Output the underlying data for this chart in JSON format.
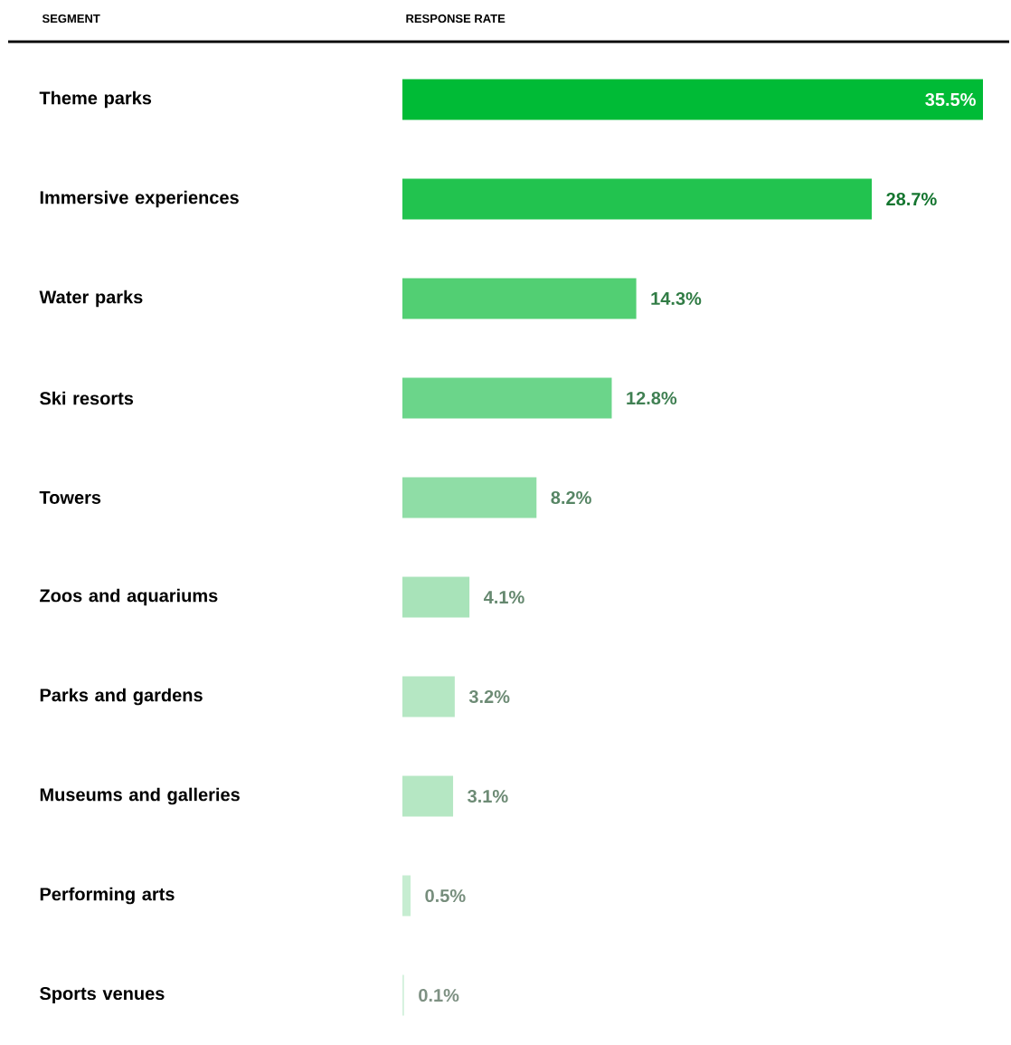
{
  "chart_data": {
    "type": "bar",
    "orientation": "horizontal",
    "xlabel": "RESPONSE RATE",
    "ylabel": "SEGMENT",
    "categories": [
      "Theme parks",
      "Immersive experiences",
      "Water parks",
      "Ski resorts",
      "Towers",
      "Zoos and aquariums",
      "Parks and gardens",
      "Museums and galleries",
      "Performing arts",
      "Sports venues"
    ],
    "values": [
      35.5,
      28.7,
      14.3,
      12.8,
      8.2,
      4.1,
      3.2,
      3.1,
      0.5,
      0.1
    ],
    "value_labels": [
      "35.5%",
      "28.7%",
      "14.3%",
      "12.8%",
      "8.2%",
      "4.1%",
      "3.2%",
      "3.1%",
      "0.5%",
      "0.1%"
    ],
    "colors": [
      "#00bb36",
      "#22c34f",
      "#52cf73",
      "#6bd58a",
      "#8fdda6",
      "#a8e3b9",
      "#b5e7c3",
      "#b5e7c3",
      "#c6edd1",
      "#d2f1db"
    ],
    "xlim": [
      0,
      35.5
    ],
    "tick_labels": "y"
  }
}
